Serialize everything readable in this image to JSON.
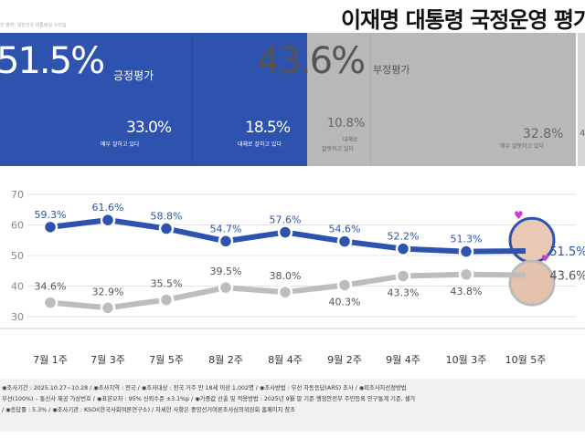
{
  "header": {
    "title": "이재명 대통령 국정운영 평가",
    "source": "진 출처: 대한민국 대통령실 누리집"
  },
  "summary": {
    "positive": {
      "total": "51.5%",
      "label": "긍정평가",
      "very": "33.0%",
      "very_label": "매우 잘하고 있다",
      "somewhat": "18.5%",
      "somewhat_label": "대체로 잘하고 있다"
    },
    "negative": {
      "total": "43.6%",
      "label": "부정평가",
      "somewhat": "10.8%",
      "somewhat_label1": "대체로",
      "somewhat_label2": "잘못하고 있다",
      "very": "32.8%",
      "very_label": "매우 잘못하고 있다",
      "other": "4"
    },
    "colors": {
      "positive": "#2e53ae",
      "negative": "#b8b8b8"
    }
  },
  "chart_data": {
    "type": "line",
    "categories": [
      "7월 1주",
      "7월 3주",
      "7월 5주",
      "8월 2주",
      "8월 4주",
      "9월 2주",
      "9월 4주",
      "10월 3주",
      "10월 5주"
    ],
    "series": [
      {
        "values": [
          59.3,
          61.6,
          58.8,
          54.7,
          57.6,
          54.6,
          52.2,
          51.3,
          51.5
        ],
        "color": "#2e53ae"
      },
      {
        "values": [
          34.6,
          32.9,
          35.5,
          39.5,
          38.0,
          40.3,
          43.3,
          43.8,
          43.6
        ],
        "color": "#bdbdbd"
      }
    ],
    "yticks": [
      30,
      40,
      50,
      60,
      70
    ],
    "ylim": [
      25,
      72
    ],
    "grid": true
  },
  "footnote": [
    "◉조사기간 : 2025.10.27~10.28 / ◉조사지역 : 전국 / ◉조사대상 : 전국 거주 만 18세 이상 1,002명 / ◉조사방법 : 무선 자동응답(ARS) 조사 / ◉피조사자선정방법",
    "무선(100%) – 통신사 제공 가상번호 / ◉표본오차 : 95% 신뢰수준 ±3.1%p / ◉가중값 산출 및 적용방법 : 2025년 9월 말 기준 행정안전부 주민등록 인구통계 기준, 셀가",
    "/ ◉응답률 : 5.3% / ◉조사기관 : KSOI(한국사회여론연구소) / 자세한 사항은 중앙선거여론조사심의위원회 홈페이지 참조"
  ]
}
